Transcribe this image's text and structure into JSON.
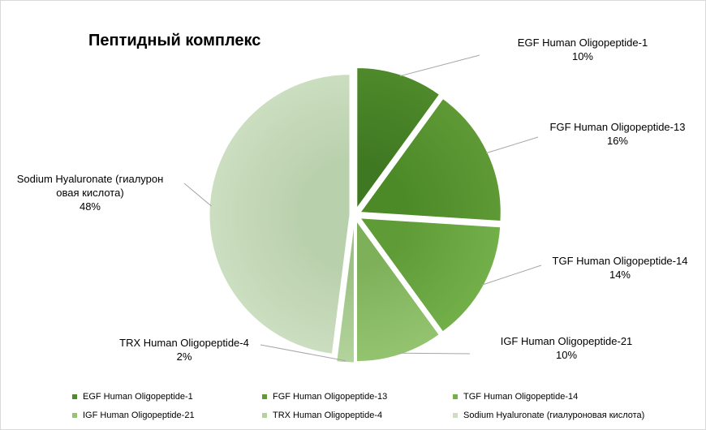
{
  "chart_data": {
    "type": "pie",
    "title": "Пептидный комплекс",
    "categories": [
      "EGF Human Oligopeptide-1",
      "FGF Human Oligopeptide-13",
      "TGF Human Oligopeptide-14",
      "IGF Human Oligopeptide-21",
      "TRX Human Oligopeptide-4",
      "Sodium Hyaluronate (гиалуроновая кислота)"
    ],
    "values": [
      10,
      16,
      14,
      10,
      2,
      48
    ],
    "value_labels": [
      "10%",
      "16%",
      "14%",
      "10%",
      "2%",
      "48%"
    ],
    "label_lines": [
      [
        "EGF Human Oligopeptide-1"
      ],
      [
        "FGF Human Oligopeptide-13"
      ],
      [
        "TGF Human Oligopeptide-14"
      ],
      [
        "IGF Human Oligopeptide-21"
      ],
      [
        "TRX Human Oligopeptide-4"
      ],
      [
        "Sodium  Hyaluronate (гиалурон",
        "овая кислота)"
      ]
    ],
    "colors": [
      "#4f8a2b",
      "#5f9a36",
      "#74b04a",
      "#94c46f",
      "#b3d49c",
      "#cddfc2"
    ],
    "legend_position": "bottom"
  }
}
